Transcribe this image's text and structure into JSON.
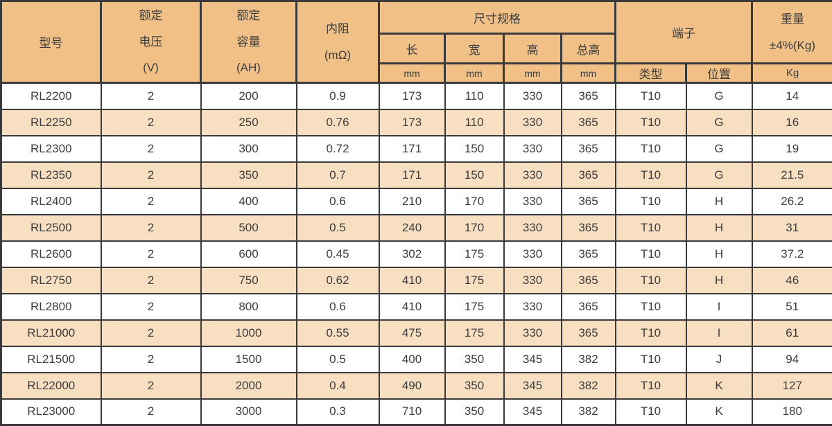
{
  "colors": {
    "header_bg": "#f0c087",
    "row_bg": "#ffffff",
    "row_alt_bg": "#f8dfc2",
    "border": "#3a3a3a",
    "text": "#3d3d3d"
  },
  "header": {
    "model": "型号",
    "rated_voltage": "额定\n电压\n(V)",
    "rated_capacity": "额定\n容量\n(AH)",
    "internal_resistance": "内阻\n(mΩ)",
    "dimensions": "尺寸规格",
    "length": "长",
    "width": "宽",
    "height": "高",
    "total_height": "总高",
    "unit_mm": "mm",
    "terminal": "端子",
    "terminal_type": "类型",
    "terminal_position": "位置",
    "weight": "重量\n±4%(Kg)",
    "unit_kg": "Kg"
  },
  "rows": [
    [
      "RL2200",
      "2",
      "200",
      "0.9",
      "173",
      "110",
      "330",
      "365",
      "T10",
      "G",
      "14"
    ],
    [
      "RL2250",
      "2",
      "250",
      "0.76",
      "173",
      "110",
      "330",
      "365",
      "T10",
      "G",
      "16"
    ],
    [
      "RL2300",
      "2",
      "300",
      "0.72",
      "171",
      "150",
      "330",
      "365",
      "T10",
      "G",
      "19"
    ],
    [
      "RL2350",
      "2",
      "350",
      "0.7",
      "171",
      "150",
      "330",
      "365",
      "T10",
      "G",
      "21.5"
    ],
    [
      "RL2400",
      "2",
      "400",
      "0.6",
      "210",
      "170",
      "330",
      "365",
      "T10",
      "H",
      "26.2"
    ],
    [
      "RL2500",
      "2",
      "500",
      "0.5",
      "240",
      "170",
      "330",
      "365",
      "T10",
      "H",
      "31"
    ],
    [
      "RL2600",
      "2",
      "600",
      "0.45",
      "302",
      "175",
      "330",
      "365",
      "T10",
      "H",
      "37.2"
    ],
    [
      "RL2750",
      "2",
      "750",
      "0.62",
      "410",
      "175",
      "330",
      "365",
      "T10",
      "H",
      "46"
    ],
    [
      "RL2800",
      "2",
      "800",
      "0.6",
      "410",
      "175",
      "330",
      "365",
      "T10",
      "I",
      "51"
    ],
    [
      "RL21000",
      "2",
      "1000",
      "0.55",
      "475",
      "175",
      "330",
      "365",
      "T10",
      "I",
      "61"
    ],
    [
      "RL21500",
      "2",
      "1500",
      "0.5",
      "400",
      "350",
      "345",
      "382",
      "T10",
      "J",
      "94"
    ],
    [
      "RL22000",
      "2",
      "2000",
      "0.4",
      "490",
      "350",
      "345",
      "382",
      "T10",
      "K",
      "127"
    ],
    [
      "RL23000",
      "2",
      "3000",
      "0.3",
      "710",
      "350",
      "345",
      "382",
      "T10",
      "K",
      "180"
    ]
  ]
}
